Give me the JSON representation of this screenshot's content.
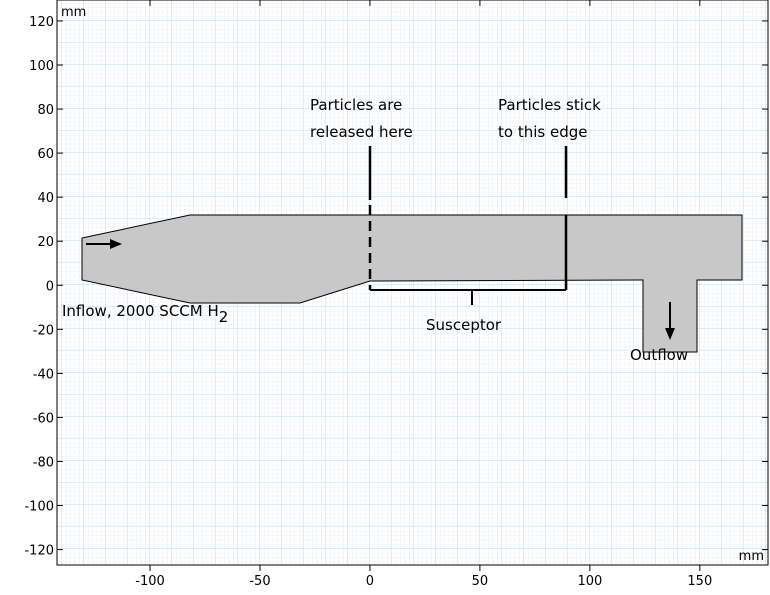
{
  "plot": {
    "x_unit": "mm",
    "y_unit": "mm",
    "xlim": [
      -142.3,
      181
    ],
    "ylim": [
      -127,
      129.5
    ],
    "xticks": [
      -100,
      -50,
      0,
      50,
      100,
      150
    ],
    "yticks": [
      120,
      100,
      80,
      60,
      40,
      20,
      0,
      -20,
      -40,
      -60,
      -80,
      -100,
      -120
    ]
  },
  "annotations": {
    "released": [
      "Particles are",
      "released here"
    ],
    "stick": [
      "Particles stick",
      "to this edge"
    ],
    "susceptor": "Susceptor",
    "outflow": "Outflow",
    "inflow": {
      "text": "Inflow, 2000 SCCM H",
      "subscript": "2"
    }
  }
}
